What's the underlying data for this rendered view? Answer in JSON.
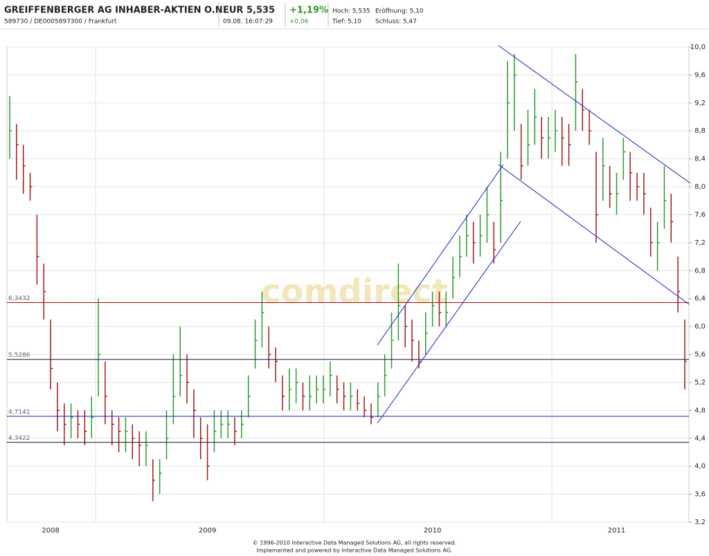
{
  "chart_data": {
    "type": "ohlc",
    "title": "GREIFFENBERGER AG INHABER-AKTIEN O.N.",
    "subtitle": "589730 / DE0005897300 / Frankfurt",
    "quote": {
      "price": "EUR 5,535",
      "time": "09.08. 16:07:29",
      "change_pct": "+1,19%",
      "change": "+0,06",
      "high": "Hoch: 5,535",
      "open": "Eröffnung: 5,10",
      "low": "Tief: 5,10",
      "close": "Schluss: 5,47"
    },
    "watermark": "comdirect",
    "footer": [
      "© 1996-2010 Interactive Data Managed Solutions AG, all rights reserved.",
      "Implemented and powered by Interactive Data Managed Solutions AG."
    ],
    "categories": [
      null,
      null,
      null,
      null,
      null,
      null,
      "2008",
      null,
      null,
      null,
      null,
      null,
      null,
      null,
      null,
      null,
      null,
      null,
      null,
      null,
      null,
      null,
      null,
      null,
      null,
      null,
      null,
      null,
      null,
      "2009",
      null,
      null,
      null,
      null,
      null,
      null,
      null,
      null,
      null,
      null,
      null,
      null,
      null,
      null,
      null,
      null,
      null,
      null,
      null,
      null,
      null,
      null,
      null,
      null,
      null,
      null,
      null,
      null,
      null,
      null,
      null,
      null,
      "2010",
      null,
      null,
      null,
      null,
      null,
      null,
      null,
      null,
      null,
      null,
      null,
      null,
      null,
      null,
      null,
      null,
      null,
      null,
      null,
      null,
      null,
      null,
      null,
      null,
      null,
      null,
      "2011",
      null,
      null,
      null,
      null,
      null,
      null,
      null,
      null,
      null,
      null
    ],
    "high": [
      9.3,
      8.9,
      8.6,
      8.2,
      7.6,
      6.9,
      6.1,
      5.2,
      4.9,
      4.9,
      4.8,
      4.8,
      5.0,
      6.4,
      5.5,
      4.8,
      4.7,
      4.7,
      4.6,
      4.5,
      4.5,
      4.1,
      4.1,
      4.8,
      5.6,
      6.0,
      5.6,
      5.1,
      4.7,
      4.6,
      4.8,
      4.8,
      4.8,
      4.7,
      4.8,
      5.3,
      6.1,
      6.5,
      6.0,
      5.7,
      5.3,
      5.4,
      5.4,
      5.2,
      5.3,
      5.3,
      5.3,
      5.5,
      5.3,
      5.2,
      5.2,
      5.1,
      5.0,
      4.9,
      5.2,
      5.6,
      6.2,
      6.9,
      6.3,
      6.1,
      5.8,
      6.2,
      6.5,
      6.5,
      6.5,
      7.0,
      7.3,
      7.6,
      7.5,
      7.6,
      8.0,
      7.5,
      8.5,
      9.8,
      9.9,
      8.9,
      9.1,
      9.4,
      9.0,
      9.0,
      9.1,
      9.0,
      8.9,
      9.9,
      9.4,
      9.1,
      8.5,
      8.7,
      8.3,
      8.2,
      8.7,
      8.5,
      8.2,
      8.2,
      7.7,
      7.5,
      8.3,
      7.9,
      7.0,
      6.1
    ],
    "low": [
      8.4,
      8.1,
      7.9,
      7.8,
      6.6,
      6.1,
      5.1,
      4.5,
      4.3,
      4.4,
      4.4,
      4.3,
      4.4,
      5.0,
      4.6,
      4.3,
      4.2,
      4.2,
      4.1,
      4.0,
      4.0,
      3.5,
      3.6,
      4.1,
      4.6,
      5.0,
      4.9,
      4.4,
      4.1,
      3.8,
      4.2,
      4.4,
      4.4,
      4.3,
      4.4,
      4.7,
      5.4,
      5.7,
      5.4,
      5.2,
      4.8,
      4.8,
      4.9,
      4.8,
      4.8,
      4.9,
      4.9,
      5.0,
      4.9,
      4.8,
      4.8,
      4.8,
      4.7,
      4.6,
      4.7,
      5.0,
      5.4,
      5.8,
      5.7,
      5.5,
      5.4,
      5.6,
      6.0,
      6.0,
      6.0,
      6.4,
      6.7,
      7.0,
      6.9,
      7.0,
      7.2,
      6.9,
      7.2,
      8.4,
      8.8,
      8.1,
      8.3,
      8.6,
      8.4,
      8.4,
      8.5,
      8.3,
      8.3,
      8.8,
      8.8,
      8.6,
      7.2,
      7.8,
      7.7,
      7.6,
      8.1,
      7.8,
      7.8,
      7.6,
      7.0,
      6.8,
      7.4,
      7.2,
      6.2,
      5.1
    ],
    "close": [
      8.8,
      8.6,
      8.3,
      8.0,
      7.0,
      6.5,
      5.4,
      4.8,
      4.6,
      4.7,
      4.6,
      4.5,
      4.7,
      5.6,
      5.0,
      4.6,
      4.5,
      4.5,
      4.4,
      4.3,
      4.3,
      3.8,
      3.9,
      4.4,
      5.0,
      5.3,
      5.2,
      4.8,
      4.4,
      4.0,
      4.5,
      4.6,
      4.6,
      4.5,
      4.6,
      5.0,
      5.8,
      6.2,
      5.6,
      5.5,
      5.0,
      5.1,
      5.2,
      5.0,
      5.0,
      5.1,
      5.1,
      5.3,
      5.1,
      5.0,
      5.0,
      4.9,
      4.8,
      4.7,
      5.0,
      5.3,
      5.8,
      6.3,
      6.0,
      5.8,
      5.5,
      5.9,
      6.3,
      6.2,
      6.2,
      6.7,
      7.0,
      7.3,
      7.2,
      7.3,
      7.6,
      7.1,
      7.8,
      9.2,
      9.6,
      8.3,
      8.6,
      9.0,
      8.7,
      8.7,
      8.8,
      8.7,
      8.6,
      9.5,
      9.1,
      8.8,
      7.6,
      8.3,
      7.9,
      7.9,
      8.5,
      8.2,
      8.0,
      7.9,
      7.2,
      7.2,
      7.8,
      7.5,
      6.5,
      5.5
    ],
    "up_color": "#2a9a2a",
    "down_color": "#a01818",
    "ylim": [
      3.2,
      10.0
    ],
    "yticks": [
      {
        "value": 3.2,
        "label": "3,2"
      },
      {
        "value": 3.6,
        "label": "3,6"
      },
      {
        "value": 4.0,
        "label": "4,0"
      },
      {
        "value": 4.4,
        "label": "4,4"
      },
      {
        "value": 4.8,
        "label": "4,8"
      },
      {
        "value": 5.2,
        "label": "5,2"
      },
      {
        "value": 5.6,
        "label": "5,6"
      },
      {
        "value": 6.0,
        "label": "6,0"
      },
      {
        "value": 6.4,
        "label": "6,4"
      },
      {
        "value": 6.8,
        "label": "6,8"
      },
      {
        "value": 7.2,
        "label": "7,2"
      },
      {
        "value": 7.6,
        "label": "7,6"
      },
      {
        "value": 8.0,
        "label": "8,0"
      },
      {
        "value": 8.4,
        "label": "8,4"
      },
      {
        "value": 8.8,
        "label": "8,8"
      },
      {
        "value": 9.2,
        "label": "9,2"
      },
      {
        "value": 9.6,
        "label": "9,6"
      },
      {
        "value": 10.0,
        "label": "10,0"
      }
    ],
    "grid": true,
    "hlines": [
      {
        "value": 6.3432,
        "label": "6,3432",
        "color": "#c00000"
      },
      {
        "value": 5.5286,
        "label": "5,5286",
        "color": "#101040"
      },
      {
        "value": 4.7141,
        "label": "4,7141",
        "color": "#1010d0"
      },
      {
        "value": 4.3422,
        "label": "4,3422",
        "color": "#101040"
      }
    ]
  }
}
